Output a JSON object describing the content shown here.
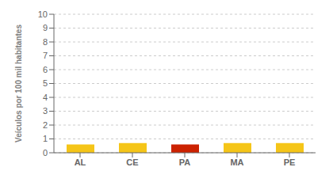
{
  "chart_data": {
    "type": "bar",
    "categories": [
      "AL",
      "CE",
      "PA",
      "MA",
      "PE"
    ],
    "values": [
      0.6,
      0.7,
      0.6,
      0.7,
      0.7
    ],
    "colors": [
      "#F5C518",
      "#F5C518",
      "#CC2200",
      "#F5C518",
      "#F5C518"
    ],
    "ylabel": "Veículos por 100 mil habitantes",
    "ylim": [
      0,
      10
    ],
    "yticks": [
      0,
      1,
      2,
      3,
      4,
      5,
      6,
      7,
      8,
      9,
      10
    ],
    "grid": true
  }
}
